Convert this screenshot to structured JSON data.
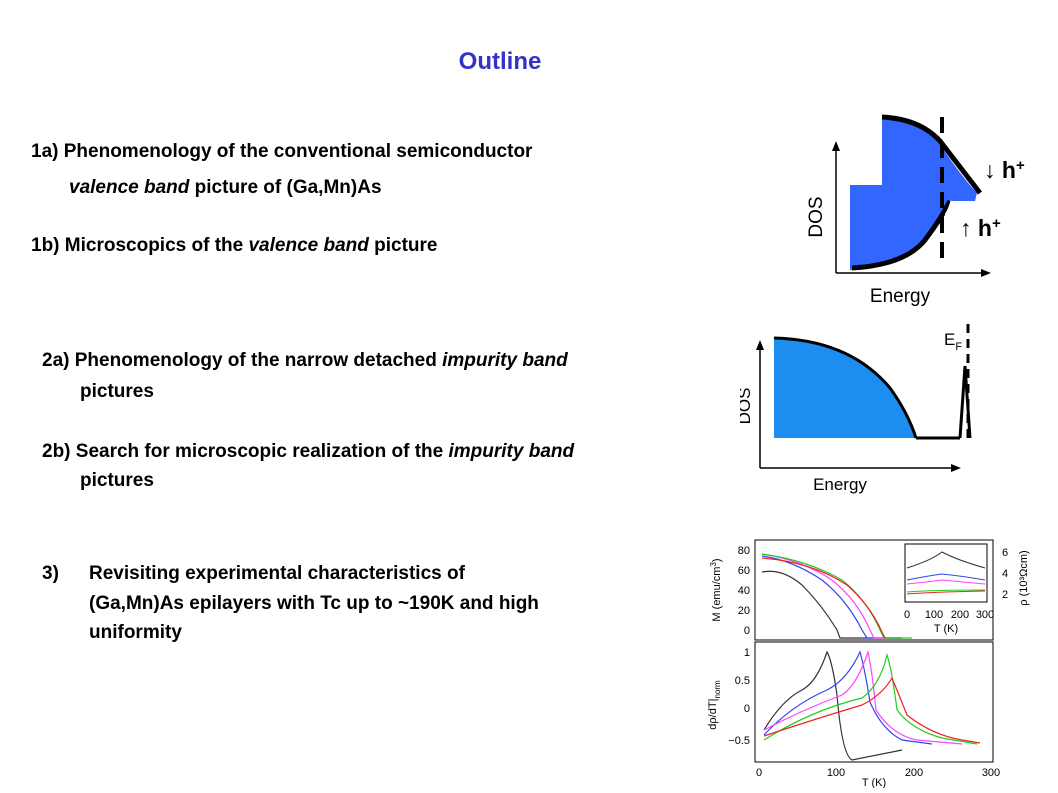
{
  "title": "Outline",
  "items": {
    "i1a": {
      "prefix": "1a) Phenomenology of the conventional semiconductor"
    },
    "i1a_cont": {
      "italic": "valence band",
      "rest": " picture of (Ga,Mn)As"
    },
    "i1b": {
      "prefix": "1b) Microscopics of the ",
      "italic": "valence band",
      "rest": " picture"
    },
    "i2a": {
      "prefix": "2a) Phenomenology of the narrow detached ",
      "italic": "impurity band"
    },
    "i2a_cont": {
      "text": "pictures"
    },
    "i2b": {
      "prefix": "2b) Search for microscopic realization of the ",
      "italic": "impurity  band"
    },
    "i2b_cont": {
      "text": "pictures"
    },
    "i3": {
      "number": "3)",
      "lines": [
        "Revisiting experimental characteristics of",
        "(Ga,Mn)As epilayers with Tc up to ~190K and high",
        "uniformity"
      ]
    }
  },
  "fig1": {
    "ylabel": "DOS",
    "xlabel": "Energy",
    "arrow_down": "↓ h",
    "arrow_up": "↑ h",
    "sup": "+"
  },
  "fig2": {
    "ylabel": "DOS",
    "xlabel": "Energy",
    "ef_main": "E",
    "ef_sub": "F"
  },
  "fig3": {
    "top": {
      "ylabel": "M (emu/cm",
      "ylabel_sup": "3",
      "ylabel_end": ")",
      "yticks": [
        "80",
        "60",
        "40",
        "20",
        "0"
      ],
      "inset": {
        "xticks": [
          "0",
          "100",
          "200",
          "300"
        ],
        "xlabel": "T  (K)",
        "yticks": [
          "6",
          "4",
          "2"
        ],
        "ylabel": "ρ (10³Ωcm)"
      }
    },
    "bottom": {
      "ylabel": "dρ/dT|",
      "ylabel_sub": "norm",
      "yticks": [
        "1",
        "0.5",
        "0",
        "−0.5"
      ],
      "xticks": [
        "0",
        "100",
        "200",
        "300"
      ],
      "xlabel": "T   (K)"
    },
    "series_colors": [
      "#333333",
      "#3344ee",
      "#ff44ff",
      "#22cc22",
      "#ee2222"
    ]
  }
}
